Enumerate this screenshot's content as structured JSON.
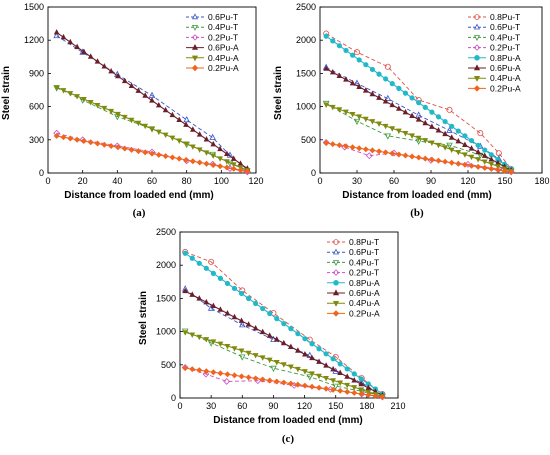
{
  "chart_data": [
    {
      "panel": "(a)",
      "type": "line",
      "xlabel": "Distance from loaded end (mm)",
      "ylabel": "Steel strain",
      "xlim": [
        0,
        120
      ],
      "ylim": [
        0,
        1500
      ],
      "xticks": [
        0,
        20,
        40,
        60,
        80,
        100,
        120
      ],
      "yticks": [
        0,
        300,
        600,
        900,
        1200,
        1500
      ],
      "grid": false,
      "legend_position": "top-right",
      "series": [
        {
          "name": "0.6Pu-T",
          "color": "#3b55c9",
          "marker": "triangle-up",
          "dashed": true,
          "x": [
            5,
            20,
            40,
            60,
            80,
            95,
            105,
            115
          ],
          "y": [
            1240,
            1090,
            890,
            700,
            480,
            320,
            160,
            30
          ]
        },
        {
          "name": "0.4Pu-T",
          "color": "#3d9a3d",
          "marker": "triangle-down",
          "dashed": true,
          "x": [
            5,
            20,
            40,
            60,
            80,
            95,
            105,
            115
          ],
          "y": [
            770,
            660,
            510,
            400,
            260,
            170,
            90,
            20
          ]
        },
        {
          "name": "0.2Pu-T",
          "color": "#cc4fc4",
          "marker": "diamond",
          "dashed": true,
          "x": [
            5,
            20,
            40,
            60,
            80,
            95,
            105,
            115
          ],
          "y": [
            360,
            300,
            245,
            190,
            110,
            80,
            40,
            10
          ]
        },
        {
          "name": "0.6Pu-A",
          "color": "#6b1f2a",
          "marker": "triangle-up",
          "dashed": false,
          "x": [
            5,
            115
          ],
          "y": [
            1270,
            40
          ]
        },
        {
          "name": "0.4Pu-A",
          "color": "#7f8a0f",
          "marker": "triangle-down",
          "dashed": false,
          "x": [
            5,
            115
          ],
          "y": [
            775,
            25
          ]
        },
        {
          "name": "0.2Pu-A",
          "color": "#f0641e",
          "marker": "diamond",
          "dashed": false,
          "x": [
            5,
            115
          ],
          "y": [
            335,
            15
          ]
        }
      ]
    },
    {
      "panel": "(b)",
      "type": "line",
      "xlabel": "Distance from loaded end (mm)",
      "ylabel": "Steel strain",
      "xlim": [
        0,
        180
      ],
      "ylim": [
        0,
        2500
      ],
      "xticks": [
        0,
        30,
        60,
        90,
        120,
        150,
        180
      ],
      "yticks": [
        0,
        500,
        1000,
        1500,
        2000,
        2500
      ],
      "grid": false,
      "legend_position": "top-right",
      "series": [
        {
          "name": "0.8Pu-T",
          "color": "#e0504a",
          "marker": "circle",
          "dashed": true,
          "x": [
            5,
            30,
            55,
            80,
            105,
            130,
            145,
            155
          ],
          "y": [
            2100,
            1820,
            1600,
            1100,
            950,
            600,
            300,
            60
          ]
        },
        {
          "name": "0.6Pu-T",
          "color": "#3b55c9",
          "marker": "triangle-up",
          "dashed": true,
          "x": [
            5,
            30,
            55,
            80,
            105,
            130,
            145,
            155
          ],
          "y": [
            1590,
            1350,
            1120,
            870,
            640,
            400,
            210,
            40
          ]
        },
        {
          "name": "0.4Pu-T",
          "color": "#3d9a3d",
          "marker": "triangle-down",
          "dashed": true,
          "x": [
            5,
            30,
            55,
            80,
            105,
            130,
            145,
            155
          ],
          "y": [
            1050,
            780,
            560,
            480,
            420,
            270,
            140,
            30
          ]
        },
        {
          "name": "0.2Pu-T",
          "color": "#cc4fc4",
          "marker": "diamond",
          "dashed": true,
          "x": [
            5,
            20,
            40,
            60,
            90,
            120,
            145,
            155
          ],
          "y": [
            460,
            390,
            260,
            300,
            190,
            130,
            60,
            15
          ]
        },
        {
          "name": "0.8Pu-A",
          "color": "#22b8c8",
          "marker": "circle",
          "dashed": false,
          "x": [
            5,
            155
          ],
          "y": [
            2060,
            60
          ]
        },
        {
          "name": "0.6Pu-A",
          "color": "#6b1f2a",
          "marker": "triangle-up",
          "dashed": false,
          "x": [
            5,
            155
          ],
          "y": [
            1570,
            40
          ]
        },
        {
          "name": "0.4Pu-A",
          "color": "#7f8a0f",
          "marker": "triangle-down",
          "dashed": false,
          "x": [
            5,
            155
          ],
          "y": [
            1030,
            30
          ]
        },
        {
          "name": "0.2Pu-A",
          "color": "#f0641e",
          "marker": "diamond",
          "dashed": false,
          "x": [
            5,
            155
          ],
          "y": [
            450,
            15
          ]
        }
      ]
    },
    {
      "panel": "(c)",
      "type": "line",
      "xlabel": "Distance from loaded end (mm)",
      "ylabel": "Steel strain",
      "xlim": [
        0,
        210
      ],
      "ylim": [
        0,
        2500
      ],
      "xticks": [
        0,
        30,
        60,
        90,
        120,
        150,
        180,
        210
      ],
      "yticks": [
        0,
        500,
        1000,
        1500,
        2000,
        2500
      ],
      "grid": false,
      "legend_position": "top-right",
      "series": [
        {
          "name": "0.8Pu-T",
          "color": "#e0504a",
          "marker": "circle",
          "dashed": true,
          "x": [
            5,
            30,
            60,
            90,
            125,
            150,
            175,
            195
          ],
          "y": [
            2200,
            2050,
            1620,
            1280,
            880,
            620,
            300,
            60
          ]
        },
        {
          "name": "0.6Pu-T",
          "color": "#3b55c9",
          "marker": "triangle-up",
          "dashed": true,
          "x": [
            5,
            30,
            60,
            90,
            125,
            150,
            175,
            195
          ],
          "y": [
            1640,
            1350,
            1100,
            880,
            640,
            400,
            230,
            40
          ]
        },
        {
          "name": "0.4Pu-T",
          "color": "#3d9a3d",
          "marker": "triangle-down",
          "dashed": true,
          "x": [
            5,
            30,
            60,
            90,
            125,
            150,
            175,
            195
          ],
          "y": [
            1010,
            830,
            620,
            450,
            320,
            180,
            100,
            25
          ]
        },
        {
          "name": "0.2Pu-T",
          "color": "#cc4fc4",
          "marker": "diamond",
          "dashed": true,
          "x": [
            5,
            25,
            45,
            75,
            110,
            145,
            175,
            195
          ],
          "y": [
            460,
            360,
            250,
            260,
            190,
            130,
            60,
            15
          ]
        },
        {
          "name": "0.8Pu-A",
          "color": "#22b8c8",
          "marker": "circle",
          "dashed": false,
          "x": [
            5,
            195
          ],
          "y": [
            2180,
            60
          ]
        },
        {
          "name": "0.6Pu-A",
          "color": "#6b1f2a",
          "marker": "triangle-up",
          "dashed": false,
          "x": [
            5,
            195
          ],
          "y": [
            1610,
            40
          ]
        },
        {
          "name": "0.4Pu-A",
          "color": "#7f8a0f",
          "marker": "triangle-down",
          "dashed": false,
          "x": [
            5,
            195
          ],
          "y": [
            990,
            25
          ]
        },
        {
          "name": "0.2Pu-A",
          "color": "#f0641e",
          "marker": "diamond",
          "dashed": false,
          "x": [
            5,
            195
          ],
          "y": [
            450,
            15
          ]
        }
      ]
    }
  ]
}
